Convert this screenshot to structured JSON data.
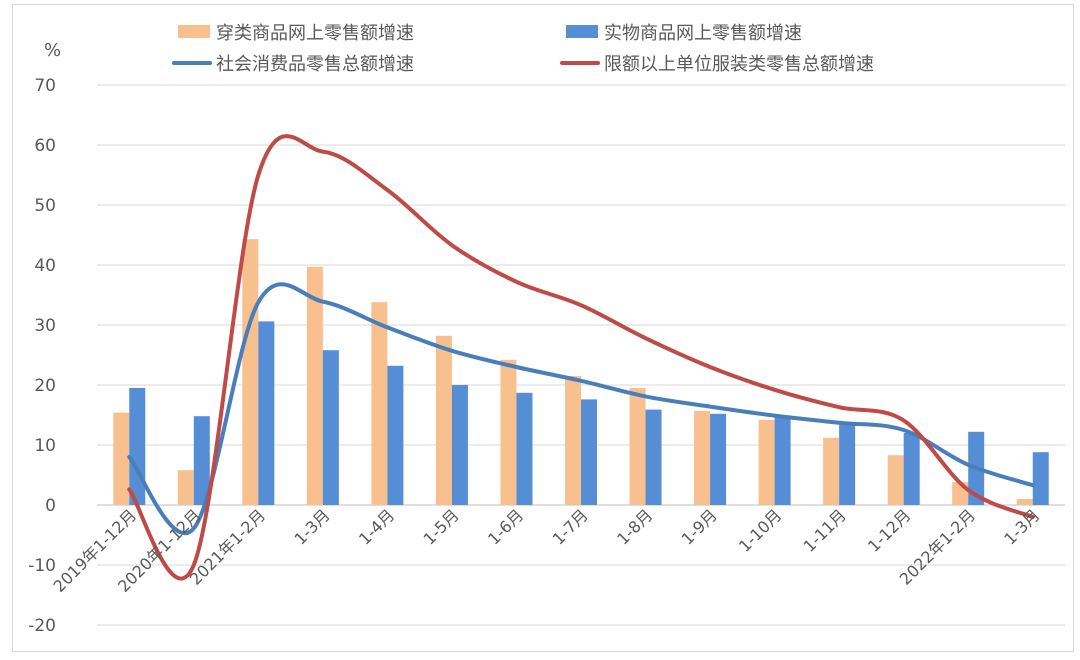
{
  "chart_data": {
    "type": "bar+line",
    "title": "",
    "ylabel": "%",
    "xlabel": "",
    "ylim": [
      -20,
      70
    ],
    "yticks": [
      -20,
      -10,
      0,
      10,
      20,
      30,
      40,
      50,
      60,
      70
    ],
    "grid": true,
    "legend_position": "top",
    "categories": [
      "2019年1-12月",
      "2020年1-12月",
      "2021年1-2月",
      "1-3月",
      "1-4月",
      "1-5月",
      "1-6月",
      "1-7月",
      "1-8月",
      "1-9月",
      "1-10月",
      "1-11月",
      "1-12月",
      "2022年1-2月",
      "1-3月"
    ],
    "series": [
      {
        "name": "穿类商品网上零售额增速",
        "kind": "bar",
        "color": "#F8C08F",
        "values": [
          15.4,
          5.8,
          44.3,
          39.7,
          33.8,
          28.2,
          24.2,
          21.5,
          19.5,
          15.7,
          14.2,
          11.2,
          8.3,
          3.8,
          1.0
        ]
      },
      {
        "name": "实物商品网上零售额增速",
        "kind": "bar",
        "color": "#558ED5",
        "values": [
          19.5,
          14.8,
          30.6,
          25.8,
          23.2,
          20.0,
          18.7,
          17.6,
          15.9,
          15.2,
          14.6,
          13.7,
          12.0,
          12.2,
          8.8
        ]
      },
      {
        "name": "社会消费品零售总额增速",
        "kind": "line",
        "color": "#4A7EBB",
        "values": [
          8.0,
          -3.9,
          33.8,
          33.9,
          29.6,
          25.7,
          23.0,
          20.7,
          18.1,
          16.4,
          14.9,
          13.7,
          12.5,
          6.7,
          3.3
        ]
      },
      {
        "name": "限额以上单位服装类零售总额增速",
        "kind": "line",
        "color": "#BE4B48",
        "values": [
          2.6,
          -10.0,
          55.0,
          58.9,
          52.5,
          43.3,
          37.2,
          33.3,
          27.8,
          23.0,
          19.2,
          16.3,
          14.1,
          2.5,
          -2.0
        ]
      }
    ]
  }
}
